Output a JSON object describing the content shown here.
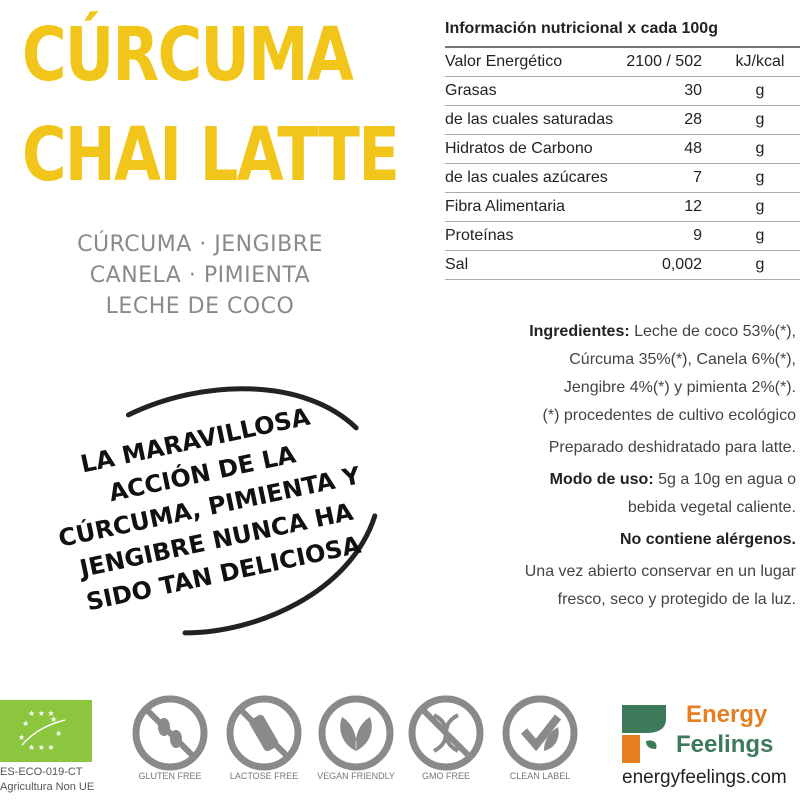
{
  "title": {
    "line1": "CÚRCUMA",
    "line2": "CHAI LATTE"
  },
  "subtitle": [
    "CÚRCUMA · JENGIBRE",
    "CANELA · PIMIENTA",
    "LECHE DE COCO"
  ],
  "slogan": [
    "LA MARAVILLOSA",
    "ACCIÓN DE LA",
    "CÚRCUMA, PIMIENTA Y",
    "JENGIBRE NUNCA HA",
    "SIDO TAN DELICIOSA"
  ],
  "nutrition": {
    "header": "Información nutricional x cada 100g",
    "rows": [
      {
        "label": "Valor Energético",
        "value": "2100 / 502",
        "unit": "kJ/kcal"
      },
      {
        "label": "Grasas",
        "value": "30",
        "unit": "g"
      },
      {
        "label": "de las cuales saturadas",
        "value": "28",
        "unit": "g"
      },
      {
        "label": "Hidratos de Carbono",
        "value": "48",
        "unit": "g"
      },
      {
        "label": "de las cuales azúcares",
        "value": "7",
        "unit": "g"
      },
      {
        "label": "Fibra Alimentaria",
        "value": "12",
        "unit": "g"
      },
      {
        "label": "Proteínas",
        "value": "9",
        "unit": "g"
      },
      {
        "label": "Sal",
        "value": "0,002",
        "unit": "g"
      }
    ]
  },
  "ingredients": {
    "label": "Ingredientes:",
    "text1": " Leche de coco 53%(*),",
    "text2": "Cúrcuma 35%(*), Canela 6%(*),",
    "text3": "Jengibre 4%(*) y pimienta 2%(*).",
    "note": "(*) procedentes de cultivo ecológico",
    "prep": "Preparado deshidratado para latte.",
    "usage_label": "Modo de uso:",
    "usage1": " 5g a 10g en agua o",
    "usage2": "bebida vegetal caliente.",
    "allergens": "No contiene alérgenos.",
    "storage1": "Una vez abierto conservar en un lugar",
    "storage2": "fresco, seco y protegido de la luz."
  },
  "eu": {
    "code": "ES-ECO-019-CT",
    "origin": "Agricultura Non UE",
    "color": "#8cc63f"
  },
  "badges": [
    {
      "label": "GLUTEN FREE",
      "icon": "wheat-icon"
    },
    {
      "label": "LACTOSE FREE",
      "icon": "bottle-icon"
    },
    {
      "label": "VEGAN FRIENDLY",
      "icon": "leaf-icon"
    },
    {
      "label": "GMO FREE",
      "icon": "dna-icon"
    },
    {
      "label": "CLEAN LABEL",
      "icon": "check-leaf-icon"
    }
  ],
  "brand": {
    "line1": "Energy",
    "line2": "Feelings",
    "url": "energyfeelings.com",
    "orange": "#e67e22",
    "green": "#3d7a5a"
  }
}
